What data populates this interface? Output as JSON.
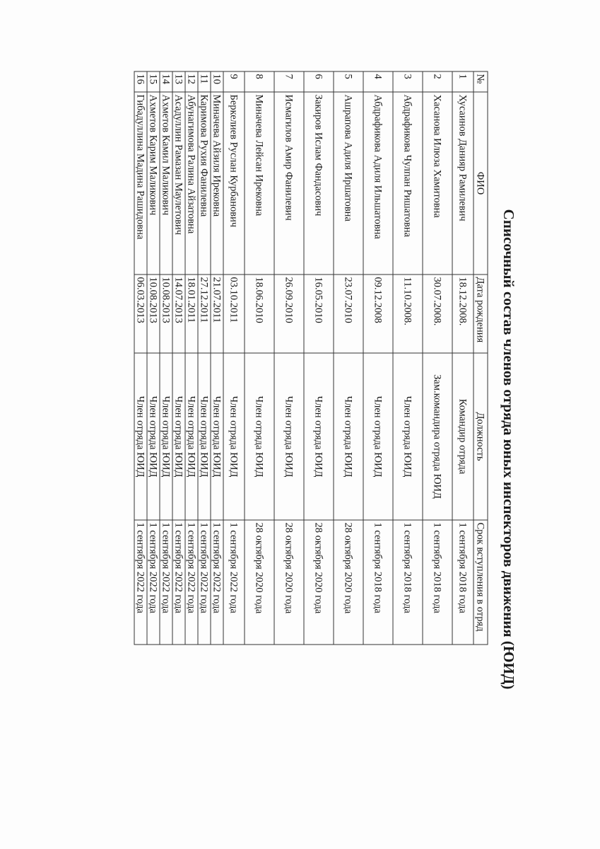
{
  "title": "Списочный состав членов отряда юных инспекторов движения (ЮИД)",
  "table": {
    "headers": [
      "№",
      "ФИО",
      "Дата рождения",
      "Должность",
      "Срок вступления в отряд"
    ],
    "rows": [
      {
        "num": "1",
        "name": "Хусаинов Данияр Рамилевич",
        "birth": "18.12.2008.",
        "position": "Командир отряда",
        "joined": "1 сентября 2018 года"
      },
      {
        "num": "2",
        "name": "Хасанова Илюза Хамитовна",
        "birth": "30.07.2008.",
        "position": "Зам.командира отряда ЮИД",
        "joined": "1 сентября 2018 года"
      },
      {
        "num": "3",
        "name": "Абдрафикова Чулпан Ришатовна",
        "birth": "11.10.2008.",
        "position": "Член отряда ЮИД",
        "joined": "1 сентября 2018 года"
      },
      {
        "num": "4",
        "name": "Абдрафикова Адиля Ильшатовна",
        "birth": "09.12.2008",
        "position": "Член отряда ЮИД",
        "joined": "1 сентября 2018 года"
      },
      {
        "num": "5",
        "name": "Ашрапова Адиля Иршатовна",
        "birth": "23.07.2010",
        "position": "Член отряда ЮИД",
        "joined": "28 октября 2020 года"
      },
      {
        "num": "6",
        "name": "Закиров Ислам Фандасович",
        "birth": "16.05.2010",
        "position": "Член отряда ЮИД",
        "joined": "28 октября 2020 года"
      },
      {
        "num": "7",
        "name": "Исмагилов Амир Фанилевич",
        "birth": "26.09.2010",
        "position": "Член отряда ЮИД",
        "joined": "28 октября 2020 года"
      },
      {
        "num": "8",
        "name": "Миначева Лейсан Ирековна",
        "birth": "18.06.2010",
        "position": "Член отряда ЮИД",
        "joined": "28 октября 2020 года"
      },
      {
        "num": "9",
        "name": "Беркелиев Руслан Курбанович",
        "birth": "03.10.2011",
        "position": "Член отряда ЮИД",
        "joined": "1 сентября 2022 года"
      },
      {
        "num": "10",
        "name": "Миначева Айзиля Ирековна",
        "birth": "21.07.2011",
        "position": "Член отряда ЮИД",
        "joined": "1 сентября 2022 года"
      },
      {
        "num": "11",
        "name": "Каримова Рухия Фанилевна",
        "birth": "27.12.2011",
        "position": "Член отряда ЮИД",
        "joined": "1 сентября 2022 года"
      },
      {
        "num": "12",
        "name": "Абунагимова Ралина Айзатовна",
        "birth": "18.01.2011",
        "position": "Член отряда ЮИД",
        "joined": "1 сентября 2022 года"
      },
      {
        "num": "13",
        "name": "Асадуллин Рамазан Маулетович",
        "birth": "14.07.2013",
        "position": "Член отряда ЮИД",
        "joined": "1 сентября 2022 года"
      },
      {
        "num": "14",
        "name": "Ахметов Камил Маликович",
        "birth": "10.08.2013",
        "position": "Член отряда ЮИД",
        "joined": "1 сентября 2022 года"
      },
      {
        "num": "15",
        "name": "Ахметов Карим Маликович",
        "birth": "10.08.2013",
        "position": "Член отряда ЮИД",
        "joined": "1 сентября 2022 года"
      },
      {
        "num": "16",
        "name": "Гибадуллина Мадина Рашидовна",
        "birth": "06.03.2013",
        "position": "Член отряда ЮИД",
        "joined": "1 сентября 2022 года"
      }
    ]
  }
}
